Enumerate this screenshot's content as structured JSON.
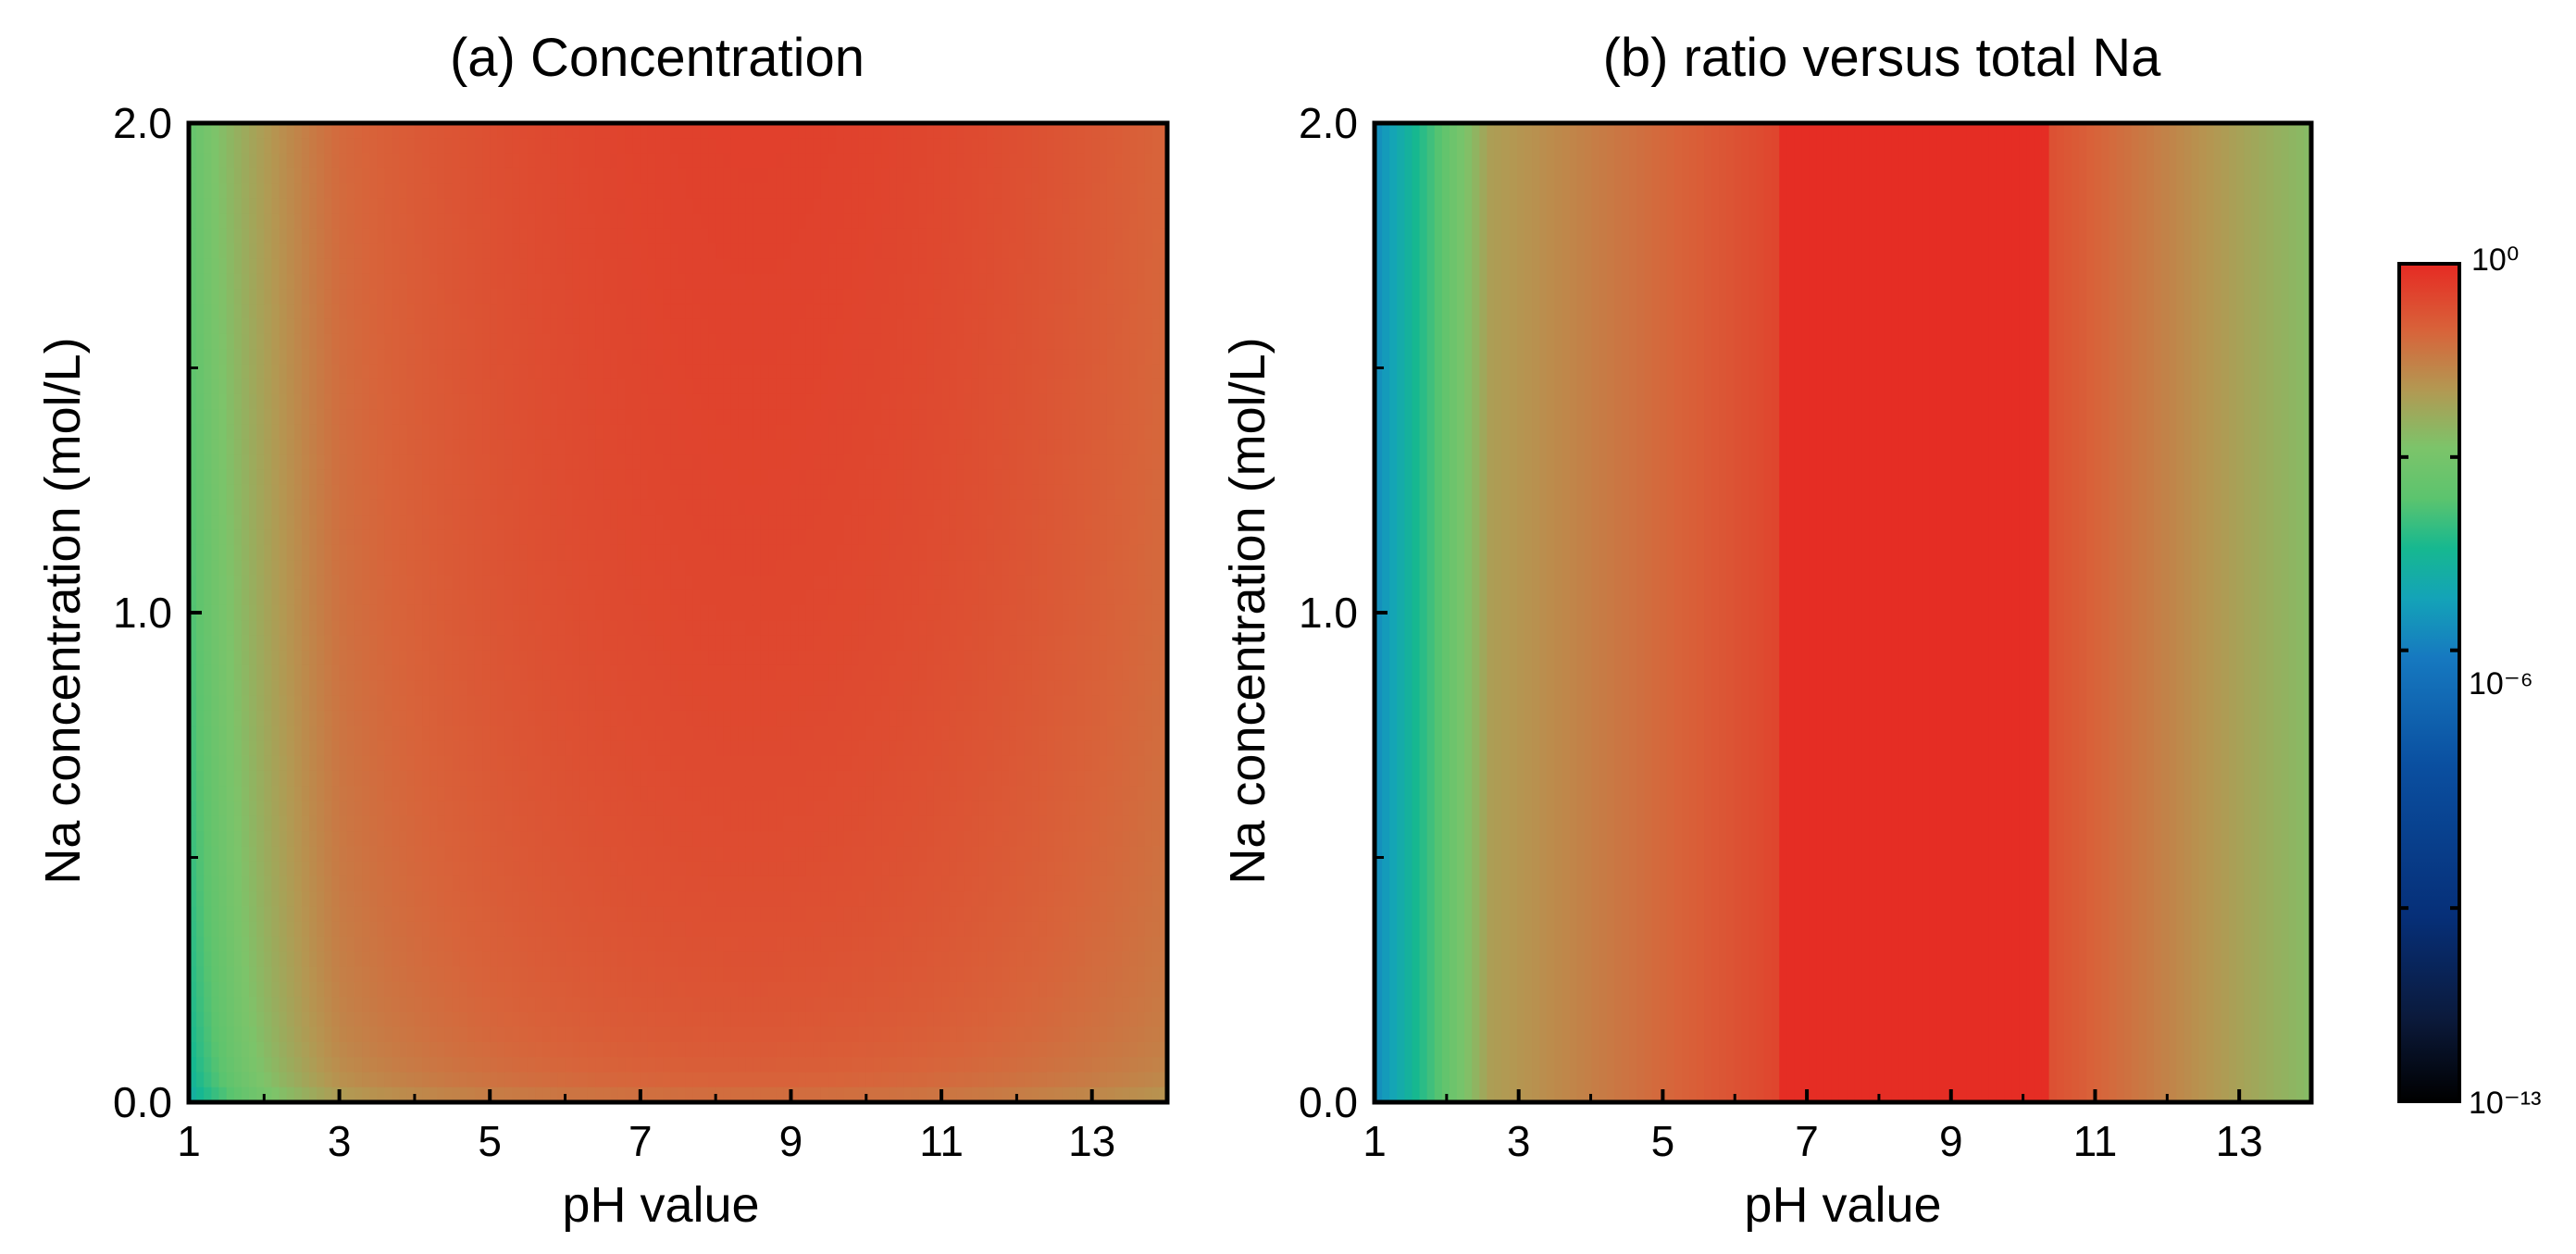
{
  "chart_data": [
    {
      "type": "heatmap",
      "title": "(a) Concentration",
      "xlabel": "pH value",
      "ylabel": "Na concentration (mol/L)",
      "xlim": [
        1,
        14
      ],
      "ylim": [
        0.0,
        2.0
      ],
      "x_ticks": [
        "1",
        "3",
        "5",
        "7",
        "9",
        "11",
        "13"
      ],
      "x_tick_values": [
        1,
        3,
        5,
        7,
        9,
        11,
        13
      ],
      "y_ticks": [
        "0.0",
        "1.0",
        "2.0"
      ],
      "y_tick_values": [
        0.0,
        1.0,
        2.0
      ],
      "y_minor_tick_values": [
        0.5,
        1.5
      ],
      "model": {
        "description": "log10 level vs pH and Na concentration; peak near pH 8.5",
        "peak_ph": 8.5,
        "base_level_at_2M": -0.4,
        "min_level": -6.5
      }
    },
    {
      "type": "heatmap",
      "title": "(b) ratio versus total Na",
      "xlabel": "pH value",
      "ylabel": "Na concentration (mol/L)",
      "xlim": [
        1,
        14
      ],
      "ylim": [
        0.0,
        2.0
      ],
      "x_ticks": [
        "1",
        "3",
        "5",
        "7",
        "9",
        "11",
        "13"
      ],
      "x_tick_values": [
        1,
        3,
        5,
        7,
        9,
        11,
        13
      ],
      "y_ticks": [
        "0.0",
        "1.0",
        "2.0"
      ],
      "y_tick_values": [
        0.0,
        1.0,
        2.0
      ],
      "y_minor_tick_values": [
        0.5,
        1.5
      ],
      "model": {
        "description": "log10 ratio vs pH; near 10^0 plateau between pH 6.6 and 10.4",
        "plateau_ph": [
          6.6,
          10.4
        ],
        "plateau_level": 0
      }
    }
  ],
  "colorbar": {
    "label_top": "10⁰",
    "label_mid": "10⁻⁶",
    "label_bottom": "10⁻¹³",
    "range_log10": [
      -13,
      0
    ],
    "tick_values_log10": [
      0,
      -3,
      -6,
      -10,
      -13
    ],
    "stops": [
      {
        "v": 0.0,
        "color": "#000000"
      },
      {
        "v": 0.1,
        "color": "#0b1a3c"
      },
      {
        "v": 0.22,
        "color": "#062f78"
      },
      {
        "v": 0.4,
        "color": "#0a4fa0"
      },
      {
        "v": 0.53,
        "color": "#1679c0"
      },
      {
        "v": 0.6,
        "color": "#14a3b8"
      },
      {
        "v": 0.66,
        "color": "#16b890"
      },
      {
        "v": 0.72,
        "color": "#5cc46e"
      },
      {
        "v": 0.78,
        "color": "#7cc46a"
      },
      {
        "v": 0.85,
        "color": "#b39852"
      },
      {
        "v": 0.92,
        "color": "#d8633a"
      },
      {
        "v": 1.0,
        "color": "#e62a23"
      }
    ]
  }
}
